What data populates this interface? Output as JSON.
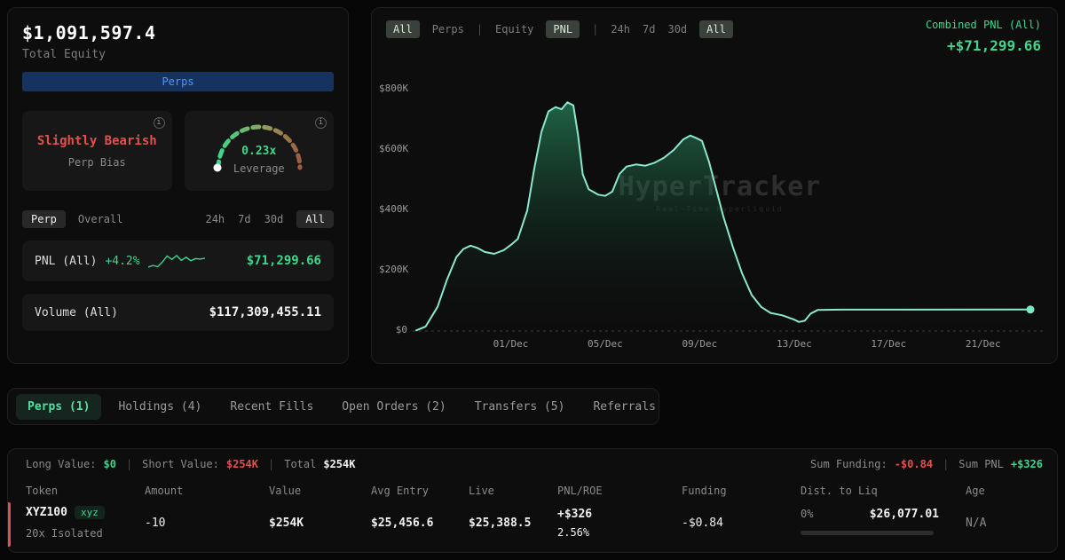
{
  "theme": {
    "accent_green": "#3dd68c",
    "accent_red": "#e0514e",
    "accent_blue": "#4f94ff",
    "chart_line": "#8be8cd"
  },
  "equity_panel": {
    "total_equity_value": "$1,091,597.4",
    "total_equity_label": "Total Equity",
    "perps_button_label": "Perps",
    "bias_card": {
      "value": "Slightly Bearish",
      "label": "Perp Bias"
    },
    "leverage_card": {
      "value": "0.23x",
      "label": "Leverage"
    },
    "scope_tabs": [
      {
        "label": "Perp",
        "selected": true
      },
      {
        "label": "Overall",
        "selected": false
      }
    ],
    "period_tabs": [
      {
        "label": "24h",
        "selected": false
      },
      {
        "label": "7d",
        "selected": false
      },
      {
        "label": "30d",
        "selected": false
      },
      {
        "label": "All",
        "selected": true
      }
    ],
    "pnl_row": {
      "label": "PNL (All)",
      "change": "+4.2%",
      "value": "$71,299.66",
      "sparkline": [
        2,
        2.4,
        2.1,
        3.2,
        4.6,
        3.8,
        4.7,
        3.6,
        4.3,
        3.5,
        4.0,
        3.9,
        4.1
      ]
    },
    "volume_row": {
      "label": "Volume (All)",
      "value": "$117,309,455.11"
    }
  },
  "chart_panel": {
    "toolbar_items": [
      {
        "label": "All",
        "selected": true
      },
      {
        "label": "Perps",
        "selected": false
      },
      {
        "label": "|",
        "divider": true
      },
      {
        "label": "Equity",
        "selected": false
      },
      {
        "label": "PNL",
        "selected": true
      },
      {
        "label": "|",
        "divider": true
      },
      {
        "label": "24h",
        "selected": false
      },
      {
        "label": "7d",
        "selected": false
      },
      {
        "label": "30d",
        "selected": false
      },
      {
        "label": "All",
        "selected": true
      }
    ],
    "combined_pnl_label": "Combined PNL (All)",
    "combined_pnl_value": "+$71,299.66",
    "watermark": "HyperTracker",
    "watermark_sub": "Real-Time Hyperliquid"
  },
  "chart_data": {
    "type": "area",
    "title": "Combined PNL (All)",
    "series_name": "Combined PNL",
    "unit": "USD thousands",
    "xlim": [
      0,
      26
    ],
    "ylim": [
      0,
      800
    ],
    "grid": false,
    "legend": false,
    "x_ticks": [
      {
        "label": "01/Dec",
        "d": 4
      },
      {
        "label": "05/Dec",
        "d": 8
      },
      {
        "label": "09/Dec",
        "d": 12
      },
      {
        "label": "13/Dec",
        "d": 16
      },
      {
        "label": "17/Dec",
        "d": 20
      },
      {
        "label": "21/Dec",
        "d": 24
      }
    ],
    "y_ticks": [
      {
        "label": "$0",
        "v": 0
      },
      {
        "label": "$200K",
        "v": 200
      },
      {
        "label": "$400K",
        "v": 400
      },
      {
        "label": "$600K",
        "v": 600
      },
      {
        "label": "$800K",
        "v": 800
      }
    ],
    "final_value": "+$71,299.66",
    "points": [
      [
        0,
        2
      ],
      [
        0.4,
        15
      ],
      [
        0.9,
        80
      ],
      [
        1.3,
        170
      ],
      [
        1.7,
        245
      ],
      [
        2,
        272
      ],
      [
        2.3,
        283
      ],
      [
        2.6,
        275
      ],
      [
        2.9,
        262
      ],
      [
        3.3,
        256
      ],
      [
        3.7,
        268
      ],
      [
        4,
        285
      ],
      [
        4.3,
        305
      ],
      [
        4.7,
        400
      ],
      [
        5,
        540
      ],
      [
        5.3,
        660
      ],
      [
        5.6,
        728
      ],
      [
        5.9,
        742
      ],
      [
        6.15,
        735
      ],
      [
        6.4,
        758
      ],
      [
        6.65,
        748
      ],
      [
        6.85,
        650
      ],
      [
        7.05,
        520
      ],
      [
        7.3,
        470
      ],
      [
        7.7,
        452
      ],
      [
        8,
        448
      ],
      [
        8.3,
        462
      ],
      [
        8.6,
        520
      ],
      [
        8.9,
        545
      ],
      [
        9.3,
        552
      ],
      [
        9.7,
        548
      ],
      [
        10.1,
        558
      ],
      [
        10.5,
        575
      ],
      [
        10.9,
        600
      ],
      [
        11.3,
        635
      ],
      [
        11.6,
        648
      ],
      [
        11.9,
        638
      ],
      [
        12.1,
        630
      ],
      [
        12.4,
        560
      ],
      [
        12.7,
        470
      ],
      [
        13,
        380
      ],
      [
        13.4,
        280
      ],
      [
        13.8,
        190
      ],
      [
        14.2,
        120
      ],
      [
        14.6,
        80
      ],
      [
        15,
        60
      ],
      [
        15.5,
        52
      ],
      [
        16,
        38
      ],
      [
        16.2,
        30
      ],
      [
        16.45,
        34
      ],
      [
        16.7,
        58
      ],
      [
        17,
        70
      ],
      [
        18,
        71
      ],
      [
        26,
        71.3
      ]
    ]
  },
  "tabs": [
    {
      "label": "Perps (1)",
      "selected": true
    },
    {
      "label": "Holdings (4)",
      "selected": false
    },
    {
      "label": "Recent Fills",
      "selected": false
    },
    {
      "label": "Open Orders (2)",
      "selected": false
    },
    {
      "label": "Transfers (5)",
      "selected": false
    },
    {
      "label": "Referrals",
      "selected": false
    }
  ],
  "positions": {
    "summary": {
      "long_label": "Long Value:",
      "long_value": "$0",
      "divider": "|",
      "short_label": "Short Value:",
      "short_value": "$254K",
      "total_label": "Total",
      "total_value": "$254K",
      "funding_label": "Sum Funding:",
      "funding_value": "-$0.84",
      "pnl_label": "Sum PNL",
      "pnl_value": "+$326"
    },
    "columns": [
      "Token",
      "Amount",
      "Value",
      "Avg Entry",
      "Live",
      "PNL/ROE",
      "Funding",
      "Dist. to Liq",
      "Age"
    ],
    "row": {
      "token": "XYZ100",
      "token_badge": "xyz",
      "leverage": "20x Isolated",
      "amount": "-10",
      "value": "$254K",
      "avg_entry": "$25,456.6",
      "live": "$25,388.5",
      "pnl": "+$326",
      "roe": "2.56%",
      "funding": "-$0.84",
      "liq_pct": "0%",
      "liq_value": "$26,077.01",
      "age": "N/A"
    }
  }
}
